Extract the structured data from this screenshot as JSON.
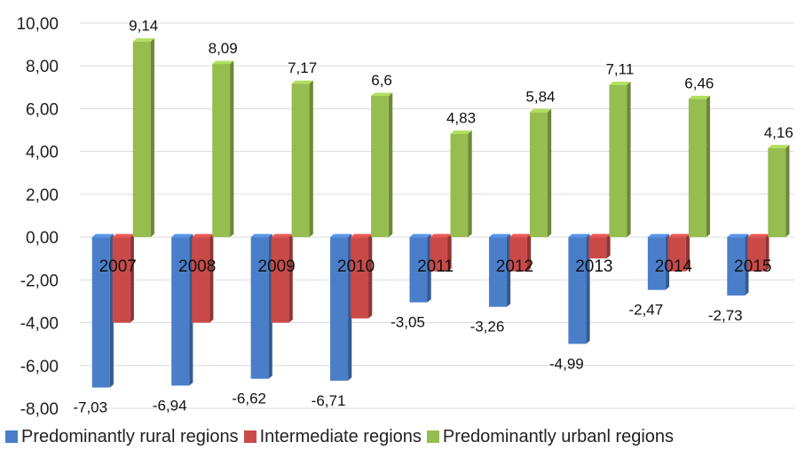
{
  "chart_data": {
    "type": "bar",
    "categories": [
      "2007",
      "2008",
      "2009",
      "2010",
      "2011",
      "2012",
      "2013",
      "2014",
      "2015"
    ],
    "series": [
      {
        "name": "Predominantly rural regions",
        "values": [
          -7.03,
          -6.94,
          -6.62,
          -6.71,
          -3.05,
          -3.26,
          -4.99,
          -2.47,
          -2.73
        ],
        "labels": [
          "-7,03",
          "-6,94",
          "-6,62",
          "-6,71",
          "-3,05",
          "-3,26",
          "-4,99",
          "-2,47",
          "-2,73"
        ],
        "color": "#4a7ec9"
      },
      {
        "name": "Intermediate regions",
        "values": [
          -4.0,
          -4.0,
          -4.0,
          -3.8,
          -1.6,
          -1.6,
          -1.0,
          -1.6,
          -1.6
        ],
        "labels": [],
        "color": "#c94a48"
      },
      {
        "name": "Predominantly urbanl regions",
        "values": [
          9.14,
          8.09,
          7.17,
          6.6,
          4.83,
          5.84,
          7.11,
          6.46,
          4.16
        ],
        "labels": [
          "9,14",
          "8,09",
          "7,17",
          "6,6",
          "4,83",
          "5,84",
          "7,11",
          "6,46",
          "4,16"
        ],
        "color": "#96bd4f"
      }
    ],
    "y_ticks": [
      "10,00",
      "8,00",
      "6,00",
      "4,00",
      "2,00",
      "0,00",
      "-2,00",
      "-4,00",
      "-6,00",
      "-8,00"
    ],
    "ylim": [
      -8,
      10
    ],
    "grid": true,
    "legend_position": "bottom"
  }
}
